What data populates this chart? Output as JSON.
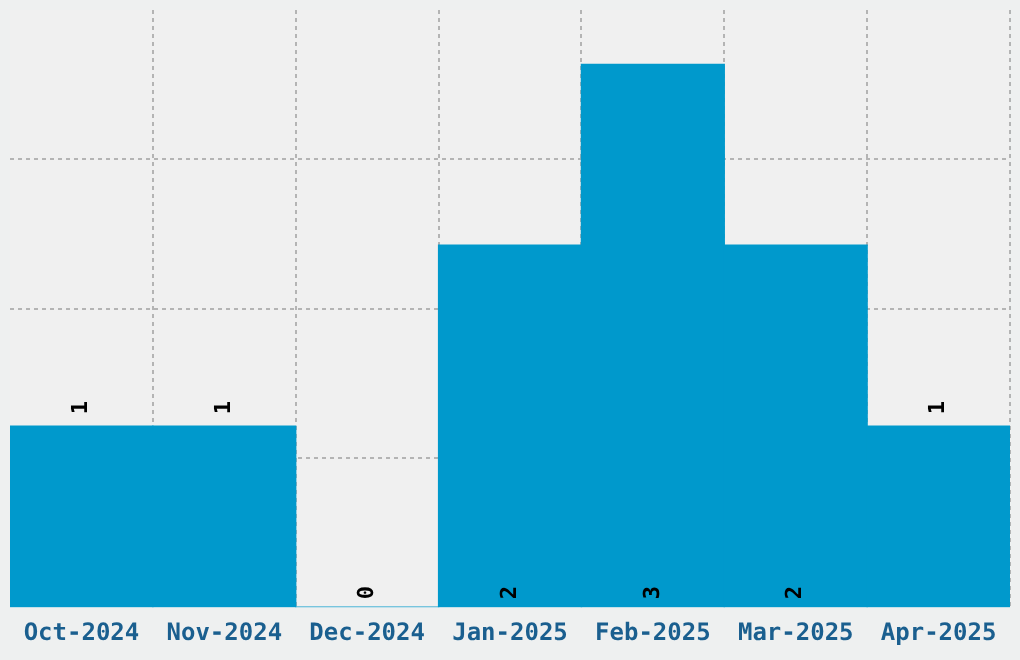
{
  "chart_data": {
    "type": "bar",
    "categories": [
      "Oct-2024",
      "Nov-2024",
      "Dec-2024",
      "Jan-2025",
      "Feb-2025",
      "Mar-2025",
      "Apr-2025"
    ],
    "values": [
      1,
      1,
      0,
      2,
      3,
      2,
      1
    ],
    "color": "#0099cc",
    "ylim": [
      0,
      3.3
    ],
    "yticks": [
      {
        "value": 0.825,
        "label": null
      },
      {
        "value": 1.65,
        "label": null
      },
      {
        "value": 2.475,
        "label": null
      }
    ],
    "grid": true,
    "data_labels": true,
    "tick_labels": "x",
    "legend": false
  }
}
